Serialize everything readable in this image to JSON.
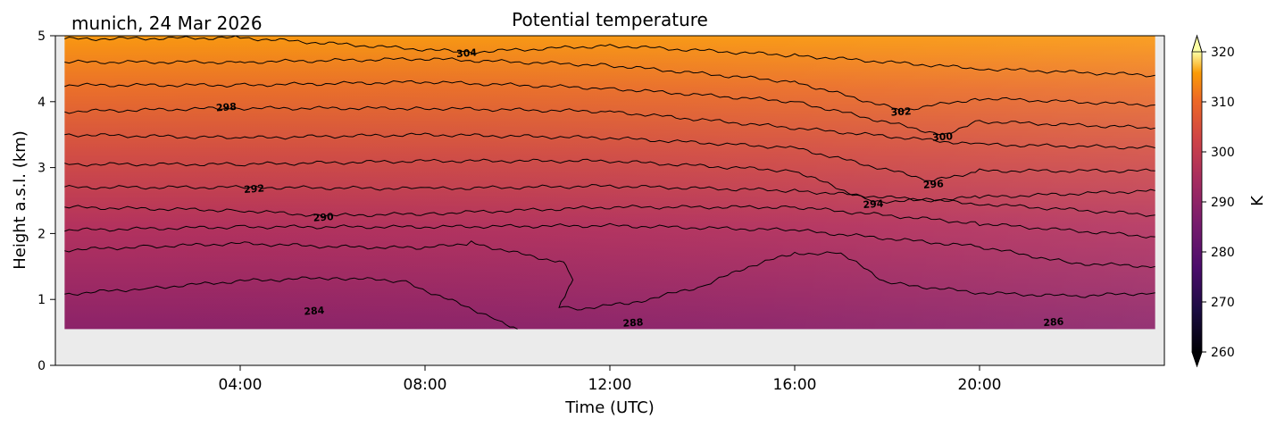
{
  "chart_data": {
    "type": "heatmap",
    "title": "Potential temperature",
    "subtitle": "munich, 24 Mar 2026",
    "xlabel": "Time (UTC)",
    "ylabel": "Height a.s.l. (km)",
    "xlim_hours": [
      0,
      24
    ],
    "ylim_km": [
      0,
      5
    ],
    "data_height_range_km": [
      0.55,
      5
    ],
    "x_ticks": [
      {
        "hours": 4,
        "label": "04:00"
      },
      {
        "hours": 8,
        "label": "08:00"
      },
      {
        "hours": 12,
        "label": "12:00"
      },
      {
        "hours": 16,
        "label": "16:00"
      },
      {
        "hours": 20,
        "label": "20:00"
      }
    ],
    "y_ticks": [
      {
        "value": 0,
        "label": "0"
      },
      {
        "value": 1,
        "label": "1"
      },
      {
        "value": 2,
        "label": "2"
      },
      {
        "value": 3,
        "label": "3"
      },
      {
        "value": 4,
        "label": "4"
      },
      {
        "value": 5,
        "label": "5"
      }
    ],
    "colorbar": {
      "label": "K",
      "vmin": 260,
      "vmax": 320,
      "colormap": "inferno",
      "extend": "both",
      "ticks": [
        {
          "value": 260,
          "label": "260"
        },
        {
          "value": 270,
          "label": "270"
        },
        {
          "value": 280,
          "label": "280"
        },
        {
          "value": 290,
          "label": "290"
        },
        {
          "value": 300,
          "label": "300"
        },
        {
          "value": 310,
          "label": "310"
        },
        {
          "value": 320,
          "label": "320"
        }
      ]
    },
    "contour_interval_K": 2,
    "contour_labels": [
      {
        "value": 284,
        "label": "284",
        "x_hours": 5.6,
        "y_km": 0.83
      },
      {
        "value": 286,
        "label": "286",
        "x_hours": 21.6,
        "y_km": 0.66
      },
      {
        "value": 288,
        "label": "288",
        "x_hours": 12.5,
        "y_km": 0.65
      },
      {
        "value": 290,
        "label": "290",
        "x_hours": 5.8,
        "y_km": 2.25
      },
      {
        "value": 292,
        "label": "292",
        "x_hours": 4.3,
        "y_km": 2.68
      },
      {
        "value": 294,
        "label": "294",
        "x_hours": 17.7,
        "y_km": 2.45
      },
      {
        "value": 296,
        "label": "296",
        "x_hours": 19.0,
        "y_km": 2.75
      },
      {
        "value": 298,
        "label": "298",
        "x_hours": 3.7,
        "y_km": 3.92
      },
      {
        "value": 300,
        "label": "300",
        "x_hours": 19.2,
        "y_km": 3.47
      },
      {
        "value": 302,
        "label": "302",
        "x_hours": 18.3,
        "y_km": 3.85
      },
      {
        "value": 304,
        "label": "304",
        "x_hours": 8.9,
        "y_km": 4.74
      }
    ],
    "isolines_km": [
      {
        "value": 284,
        "points": [
          [
            0.2,
            1.08
          ],
          [
            2,
            1.17
          ],
          [
            4,
            1.28
          ],
          [
            6,
            1.33
          ],
          [
            7.5,
            1.28
          ],
          [
            8.5,
            1.0
          ],
          [
            9.5,
            0.72
          ],
          [
            10,
            0.55
          ]
        ]
      },
      {
        "value": 286,
        "points": [
          [
            0.2,
            1.75
          ],
          [
            2,
            1.8
          ],
          [
            4,
            1.85
          ],
          [
            6,
            1.8
          ],
          [
            8,
            1.78
          ],
          [
            9,
            1.86
          ],
          [
            10,
            1.7
          ],
          [
            11,
            1.56
          ],
          [
            11.2,
            1.3
          ],
          [
            10.9,
            0.9
          ],
          [
            11.2,
            0.85
          ],
          [
            12.5,
            0.95
          ],
          [
            14,
            1.2
          ],
          [
            15,
            1.5
          ],
          [
            16,
            1.7
          ],
          [
            17,
            1.7
          ],
          [
            18,
            1.25
          ],
          [
            20,
            1.1
          ],
          [
            22,
            1.05
          ],
          [
            23.8,
            1.1
          ]
        ]
      },
      {
        "value": 288,
        "points": [
          [
            0.2,
            2.05
          ],
          [
            4,
            2.1
          ],
          [
            8,
            2.1
          ],
          [
            12,
            2.12
          ],
          [
            16,
            2.05
          ],
          [
            20,
            1.8
          ],
          [
            22,
            1.55
          ],
          [
            23.8,
            1.5
          ]
        ]
      },
      {
        "value": 290,
        "points": [
          [
            0.2,
            2.4
          ],
          [
            4,
            2.35
          ],
          [
            5.8,
            2.27
          ],
          [
            8,
            2.3
          ],
          [
            12,
            2.4
          ],
          [
            16,
            2.4
          ],
          [
            20,
            2.15
          ],
          [
            23.8,
            1.95
          ]
        ]
      },
      {
        "value": 292,
        "points": [
          [
            0.2,
            2.7
          ],
          [
            4.3,
            2.7
          ],
          [
            8,
            2.68
          ],
          [
            12,
            2.72
          ],
          [
            16,
            2.65
          ],
          [
            20,
            2.45
          ],
          [
            23.8,
            2.28
          ]
        ]
      },
      {
        "value": 294,
        "points": [
          [
            0.2,
            3.05
          ],
          [
            4,
            3.05
          ],
          [
            8,
            3.1
          ],
          [
            12,
            3.1
          ],
          [
            16,
            2.95
          ],
          [
            17.7,
            2.48
          ],
          [
            20,
            2.55
          ],
          [
            23.8,
            2.65
          ]
        ]
      },
      {
        "value": 296,
        "points": [
          [
            0.2,
            3.5
          ],
          [
            4,
            3.45
          ],
          [
            8,
            3.5
          ],
          [
            12,
            3.45
          ],
          [
            16,
            3.3
          ],
          [
            19,
            2.8
          ],
          [
            20,
            2.95
          ],
          [
            23.8,
            2.95
          ]
        ]
      },
      {
        "value": 298,
        "points": [
          [
            0.2,
            3.85
          ],
          [
            3.7,
            3.9
          ],
          [
            8,
            3.9
          ],
          [
            12,
            3.85
          ],
          [
            16,
            3.6
          ],
          [
            20,
            3.35
          ],
          [
            23.8,
            3.3
          ]
        ]
      },
      {
        "value": 300,
        "points": [
          [
            0.2,
            4.25
          ],
          [
            4,
            4.25
          ],
          [
            8,
            4.3
          ],
          [
            12,
            4.2
          ],
          [
            16,
            4.0
          ],
          [
            19.2,
            3.5
          ],
          [
            20,
            3.7
          ],
          [
            23.8,
            3.6
          ]
        ]
      },
      {
        "value": 302,
        "points": [
          [
            0.2,
            4.6
          ],
          [
            4,
            4.6
          ],
          [
            8,
            4.65
          ],
          [
            12,
            4.55
          ],
          [
            16,
            4.3
          ],
          [
            18.3,
            3.87
          ],
          [
            20,
            4.05
          ],
          [
            23.8,
            3.95
          ]
        ]
      },
      {
        "value": 304,
        "points": [
          [
            0.2,
            4.95
          ],
          [
            4,
            4.97
          ],
          [
            8.9,
            4.75
          ],
          [
            12,
            4.85
          ],
          [
            16,
            4.7
          ],
          [
            20,
            4.5
          ],
          [
            23.8,
            4.4
          ]
        ]
      }
    ]
  }
}
